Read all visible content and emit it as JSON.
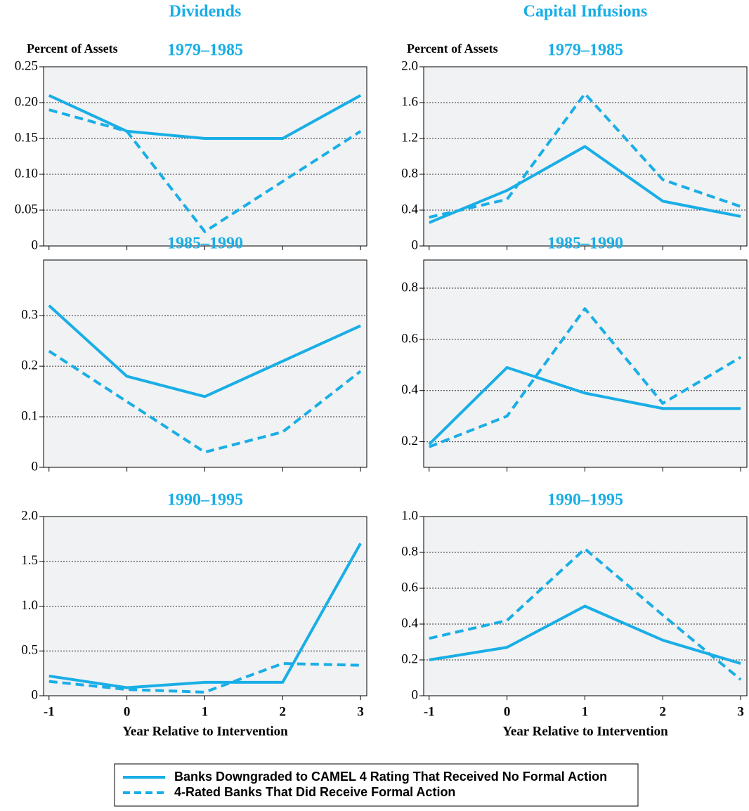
{
  "columns": [
    "Dividends",
    "Capital Infusions"
  ],
  "legend": [
    {
      "name": "Banks Downgraded to CAMEL 4 Rating That Received No Formal Action",
      "color": "#19aee6",
      "dashed": false
    },
    {
      "name": "4-Rated Banks That Did Receive Formal Action",
      "color": "#19aee6",
      "dashed": true
    }
  ],
  "chart_data": [
    {
      "type": "line",
      "title": "1979–1985",
      "ylabel": "Percent of Assets",
      "x": [
        -1,
        0,
        1,
        2,
        3
      ],
      "xlim": [
        -1.07,
        3.08
      ],
      "ylim": [
        0,
        0.25
      ],
      "yticks": [
        0,
        0.05,
        {
          "value": 0.1,
          "label": "0.10"
        },
        0.15,
        {
          "value": 0.2,
          "label": "0.20"
        },
        0.25
      ],
      "grid": true,
      "series": [
        {
          "color": "#19aee6",
          "dashed": false,
          "values": [
            0.21,
            0.16,
            0.15,
            0.15,
            0.21
          ]
        },
        {
          "color": "#19aee6",
          "dashed": true,
          "values": [
            0.19,
            0.16,
            0.02,
            0.09,
            0.16
          ]
        }
      ]
    },
    {
      "type": "line",
      "title": "1979–1985",
      "ylabel": "Percent of Assets",
      "x": [
        -1,
        0,
        1,
        2,
        3
      ],
      "xlim": [
        -1.07,
        3.08
      ],
      "ylim": [
        0,
        2
      ],
      "yticks": [
        0,
        0.4,
        0.8,
        1.2,
        1.6,
        {
          "value": 2,
          "label": "2.0"
        }
      ],
      "grid": true,
      "series": [
        {
          "color": "#19aee6",
          "dashed": false,
          "values": [
            0.26,
            0.62,
            1.11,
            0.5,
            0.33
          ]
        },
        {
          "color": "#19aee6",
          "dashed": true,
          "values": [
            0.32,
            0.52,
            1.7,
            0.74,
            0.44
          ]
        }
      ]
    },
    {
      "type": "line",
      "title": "1985–1990",
      "x": [
        -1,
        0,
        1,
        2,
        3
      ],
      "xlim": [
        -1.07,
        3.08
      ],
      "ylim": [
        0,
        0.41
      ],
      "yticks": [
        0,
        0.1,
        0.2,
        0.3
      ],
      "grid": true,
      "series": [
        {
          "color": "#19aee6",
          "dashed": false,
          "values": [
            0.32,
            0.18,
            0.14,
            0.21,
            0.28
          ]
        },
        {
          "color": "#19aee6",
          "dashed": true,
          "values": [
            0.23,
            0.13,
            0.03,
            0.07,
            0.19
          ]
        }
      ]
    },
    {
      "type": "line",
      "title": "1985–1990",
      "x": [
        -1,
        0,
        1,
        2,
        3
      ],
      "xlim": [
        -1.07,
        3.08
      ],
      "ylim": [
        0.1,
        0.91
      ],
      "yticks": [
        0.2,
        0.4,
        0.6,
        0.8
      ],
      "grid": true,
      "series": [
        {
          "color": "#19aee6",
          "dashed": false,
          "values": [
            0.19,
            0.49,
            0.39,
            0.33,
            0.33
          ]
        },
        {
          "color": "#19aee6",
          "dashed": true,
          "values": [
            0.18,
            0.3,
            0.72,
            0.35,
            0.53
          ]
        }
      ]
    },
    {
      "type": "line",
      "title": "1990–1995",
      "xlabel": "Year Relative to Intervention",
      "x": [
        -1,
        0,
        1,
        2,
        3
      ],
      "xlim": [
        -1.07,
        3.08
      ],
      "xticks": [
        -1,
        0,
        1,
        2,
        3
      ],
      "ylim": [
        0,
        2
      ],
      "yticks": [
        0,
        0.5,
        {
          "value": 1,
          "label": "1.0"
        },
        1.5,
        {
          "value": 2,
          "label": "2.0"
        }
      ],
      "grid": true,
      "series": [
        {
          "color": "#19aee6",
          "dashed": false,
          "values": [
            0.22,
            0.09,
            0.15,
            0.15,
            1.7
          ]
        },
        {
          "color": "#19aee6",
          "dashed": true,
          "values": [
            0.16,
            0.07,
            0.04,
            0.36,
            0.34
          ]
        }
      ]
    },
    {
      "type": "line",
      "title": "1990–1995",
      "xlabel": "Year Relative to Intervention",
      "x": [
        -1,
        0,
        1,
        2,
        3
      ],
      "xlim": [
        -1.07,
        3.08
      ],
      "xticks": [
        -1,
        0,
        1,
        2,
        3
      ],
      "ylim": [
        0,
        1
      ],
      "yticks": [
        0,
        0.2,
        0.4,
        0.6,
        0.8,
        {
          "value": 1,
          "label": "1.0"
        }
      ],
      "grid": true,
      "series": [
        {
          "color": "#19aee6",
          "dashed": false,
          "values": [
            0.2,
            0.27,
            0.5,
            0.31,
            0.18
          ]
        },
        {
          "color": "#19aee6",
          "dashed": true,
          "values": [
            0.32,
            0.42,
            0.82,
            0.45,
            0.09
          ]
        }
      ]
    }
  ]
}
